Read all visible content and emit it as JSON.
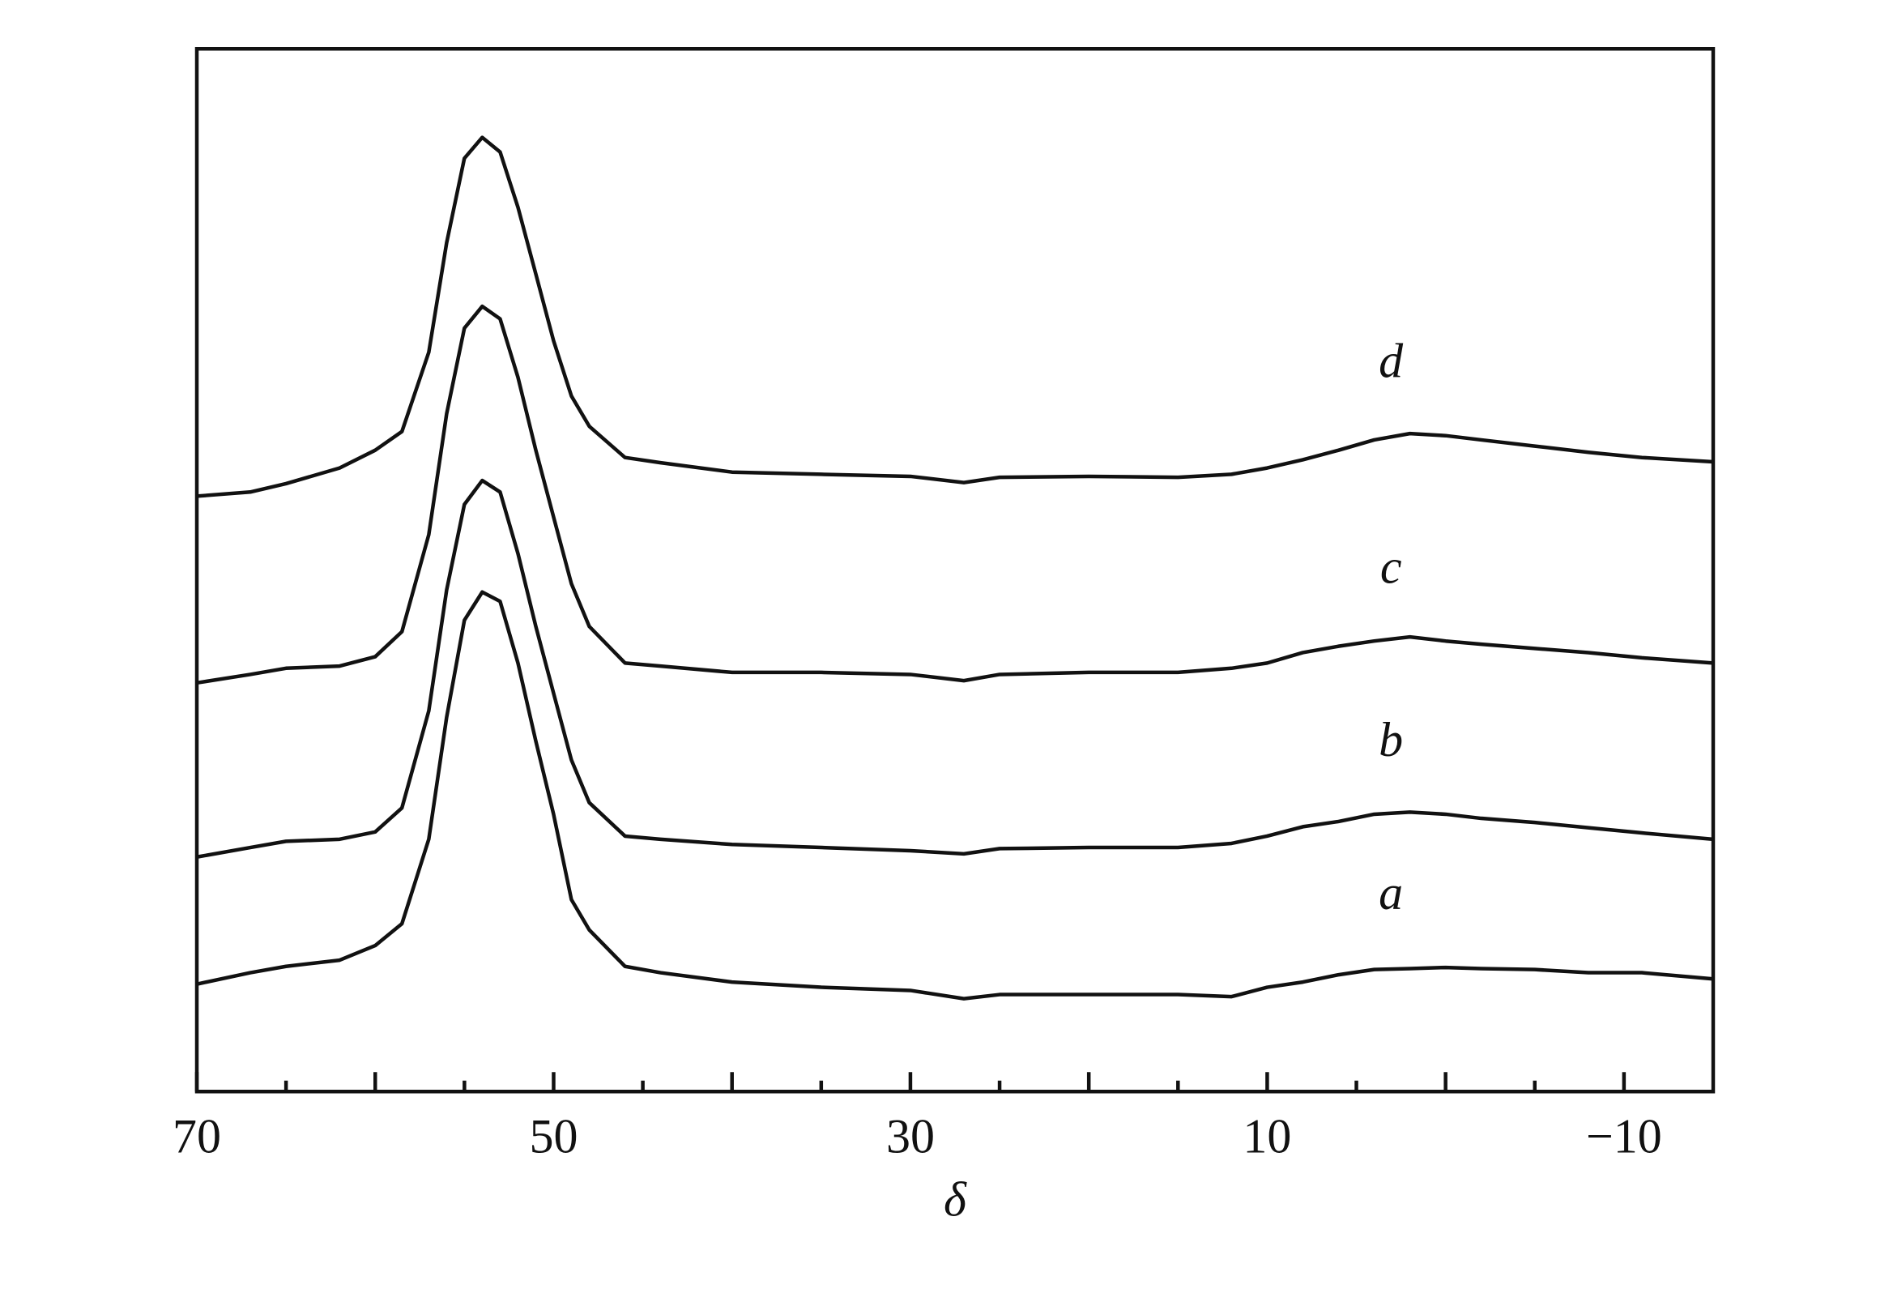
{
  "chart_data": {
    "type": "line",
    "xlabel": "δ",
    "xlim": [
      70,
      -15
    ],
    "ylim": [
      0,
      100
    ],
    "xticks": [
      70,
      50,
      30,
      10,
      {
        "value": -10,
        "label": "−10"
      }
    ],
    "xticks_minor": [
      65,
      60,
      55,
      45,
      40,
      35,
      25,
      20,
      15,
      5,
      0,
      -5
    ],
    "x": [
      70,
      67,
      65,
      62,
      60,
      58.5,
      57,
      56,
      55,
      54,
      53,
      52,
      51,
      50,
      49,
      48,
      46,
      44,
      40,
      35,
      30,
      27,
      25,
      20,
      15,
      12,
      10,
      8,
      6,
      4,
      2,
      0,
      -2,
      -5,
      -8,
      -11,
      -15
    ],
    "series": [
      {
        "name": "a",
        "color": "#111111",
        "values": [
          10.3,
          11.4,
          12.0,
          12.6,
          14.0,
          16.1,
          24.2,
          35.9,
          45.2,
          47.9,
          47.0,
          41.1,
          33.6,
          26.6,
          18.4,
          15.5,
          12.0,
          11.4,
          10.5,
          10.0,
          9.7,
          8.9,
          9.3,
          9.3,
          9.3,
          9.1,
          10.0,
          10.5,
          11.2,
          11.7,
          11.8,
          11.9,
          11.8,
          11.7,
          11.4,
          11.4,
          10.8
        ]
      },
      {
        "name": "b",
        "color": "#111111",
        "values": [
          22.5,
          23.4,
          24.0,
          24.2,
          24.9,
          27.2,
          36.5,
          48.1,
          56.3,
          58.6,
          57.5,
          51.6,
          44.6,
          38.2,
          31.8,
          27.7,
          24.5,
          24.2,
          23.7,
          23.4,
          23.1,
          22.8,
          23.3,
          23.4,
          23.4,
          23.8,
          24.5,
          25.4,
          25.9,
          26.6,
          26.8,
          26.6,
          26.2,
          25.8,
          25.3,
          24.8,
          24.2
        ]
      },
      {
        "name": "c",
        "color": "#111111",
        "values": [
          39.2,
          40.0,
          40.6,
          40.8,
          41.7,
          44.1,
          53.4,
          65.0,
          73.2,
          75.3,
          74.1,
          68.5,
          61.5,
          55.1,
          48.7,
          44.6,
          41.1,
          40.8,
          40.2,
          40.2,
          40.0,
          39.4,
          40.0,
          40.2,
          40.2,
          40.6,
          41.1,
          42.1,
          42.7,
          43.2,
          43.6,
          43.2,
          42.9,
          42.5,
          42.1,
          41.6,
          41.1
        ]
      },
      {
        "name": "d",
        "color": "#111111",
        "values": [
          57.1,
          57.5,
          58.3,
          59.8,
          61.5,
          63.3,
          70.9,
          81.4,
          89.5,
          91.5,
          90.1,
          84.8,
          78.4,
          72.0,
          66.7,
          63.8,
          60.8,
          60.3,
          59.4,
          59.2,
          59.0,
          58.4,
          58.9,
          59.0,
          58.9,
          59.2,
          59.8,
          60.6,
          61.5,
          62.5,
          63.1,
          62.9,
          62.5,
          61.9,
          61.3,
          60.8,
          60.4
        ]
      }
    ]
  }
}
